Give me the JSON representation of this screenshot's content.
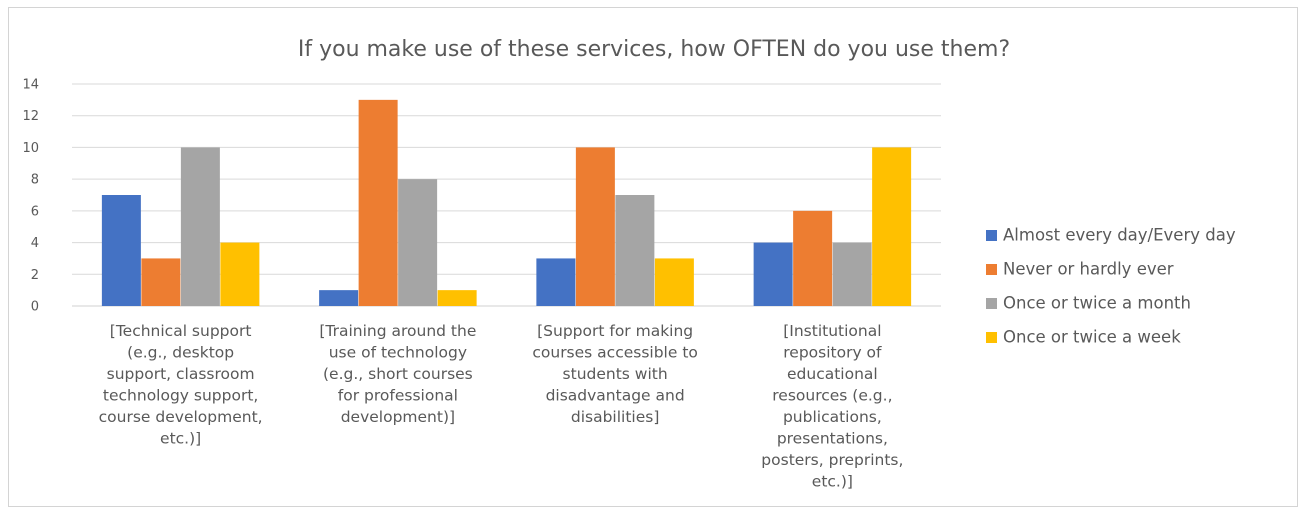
{
  "chart_data": {
    "type": "bar",
    "title": "If you make use of these services, how OFTEN do you use them?",
    "xlabel": "",
    "ylabel": "",
    "ylim": [
      0,
      14
    ],
    "yticks": [
      0,
      2,
      4,
      6,
      8,
      10,
      12,
      14
    ],
    "grid": true,
    "legend_position": "right",
    "categories": [
      [
        "[Technical support",
        "(e.g., desktop",
        "support, classroom",
        "technology support,",
        "course development,",
        "etc.)]"
      ],
      [
        "[Training around the",
        "use of technology",
        "(e.g., short courses",
        "for professional",
        "development)]"
      ],
      [
        "[Support for making",
        "courses accessible to",
        "students with",
        "disadvantage and",
        "disabilities]"
      ],
      [
        "[Institutional",
        "repository of",
        "educational",
        "resources (e.g.,",
        "publications,",
        "presentations,",
        "posters, preprints,",
        "etc.)]"
      ]
    ],
    "series": [
      {
        "name": "Almost every day/Every day",
        "color": "#4472C4",
        "values": [
          7,
          1,
          3,
          4
        ]
      },
      {
        "name": "Never or hardly ever",
        "color": "#ED7D31",
        "values": [
          3,
          13,
          10,
          6
        ]
      },
      {
        "name": "Once or twice a month",
        "color": "#A5A5A5",
        "values": [
          10,
          8,
          7,
          4
        ]
      },
      {
        "name": "Once or twice a week",
        "color": "#FFC000",
        "values": [
          4,
          1,
          3,
          10
        ]
      }
    ]
  }
}
